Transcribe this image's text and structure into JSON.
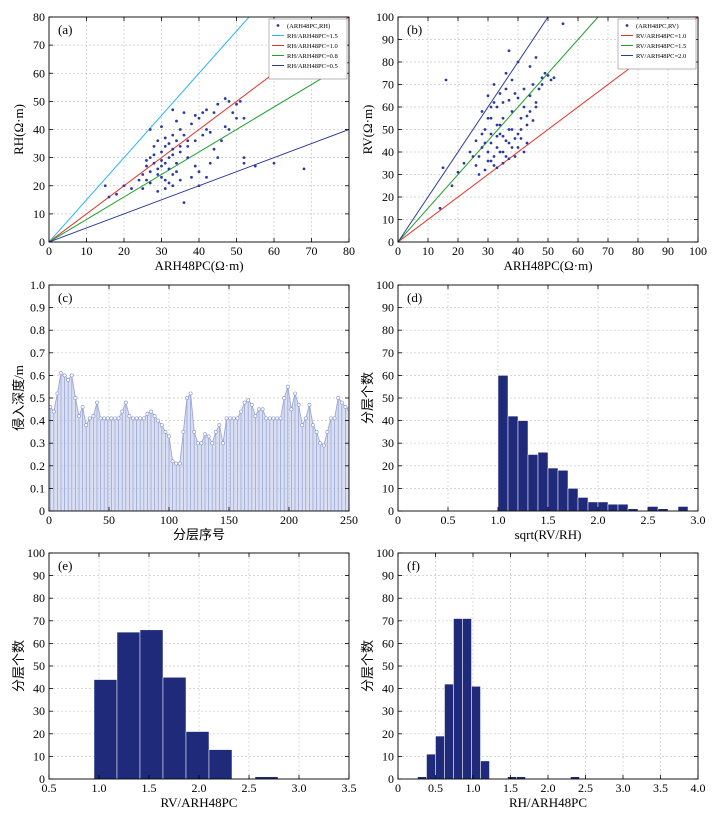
{
  "colors": {
    "point": "#2b3a9e",
    "bar": "#1f2a7a",
    "stem": "#9aa6d6",
    "stem_fill": "#bcc6e8",
    "line_15": "#29b6f6",
    "line_10": "#e8312a",
    "line_08": "#1fa02a",
    "line_05": "#2b3a9e",
    "line_20": "#2b3a9e",
    "grid": "#c8c8c8"
  },
  "chart_data": [
    {
      "id": "a",
      "type": "scatter",
      "panel_label": "(a)",
      "xlabel": "ARH48PC(Ω·m)",
      "ylabel": "RH(Ω·m)",
      "xlim": [
        0,
        80
      ],
      "ylim": [
        0,
        80
      ],
      "xticks": [
        "0",
        "10",
        "20",
        "30",
        "40",
        "50",
        "60",
        "70",
        "80"
      ],
      "yticks": [
        "0",
        "10",
        "20",
        "30",
        "40",
        "50",
        "60",
        "70",
        "80"
      ],
      "grid": true,
      "legend_position": "top-right",
      "legend": [
        "(ARH48PC,RH)",
        "RH/ARH48PC=1.5",
        "RH/ARH48PC=1.0",
        "RH/ARH48PC=0.8",
        "RH/ARH48PC=0.5"
      ],
      "lines": [
        {
          "name": "RH/ARH48PC=1.5",
          "slope": 1.5,
          "color": "line_15"
        },
        {
          "name": "RH/ARH48PC=1.0",
          "slope": 1.0,
          "color": "line_10"
        },
        {
          "name": "RH/ARH48PC=0.8",
          "slope": 0.8,
          "color": "line_08"
        },
        {
          "name": "RH/ARH48PC=0.5",
          "slope": 0.5,
          "color": "line_05"
        }
      ],
      "points": [
        [
          15,
          20
        ],
        [
          16,
          16
        ],
        [
          18,
          17
        ],
        [
          20,
          20
        ],
        [
          22,
          19
        ],
        [
          24,
          22
        ],
        [
          25,
          24
        ],
        [
          26,
          27
        ],
        [
          27,
          40
        ],
        [
          27,
          30
        ],
        [
          28,
          31
        ],
        [
          29,
          24
        ],
        [
          30,
          29
        ],
        [
          30,
          32
        ],
        [
          31,
          34
        ],
        [
          31,
          37
        ],
        [
          32,
          30
        ],
        [
          32,
          35
        ],
        [
          33,
          38
        ],
        [
          33,
          33
        ],
        [
          34,
          36
        ],
        [
          34,
          28
        ],
        [
          35,
          40
        ],
        [
          35,
          32
        ],
        [
          36,
          38
        ],
        [
          37,
          30
        ],
        [
          38,
          42
        ],
        [
          39,
          45
        ],
        [
          40,
          44
        ],
        [
          41,
          46
        ],
        [
          42,
          40
        ],
        [
          43,
          39
        ],
        [
          45,
          49
        ],
        [
          47,
          51
        ],
        [
          48,
          50
        ],
        [
          50,
          49
        ],
        [
          51,
          50
        ],
        [
          52,
          28
        ],
        [
          55,
          27
        ],
        [
          60,
          28
        ],
        [
          68,
          26
        ],
        [
          29,
          18
        ],
        [
          31,
          19
        ],
        [
          33,
          20
        ],
        [
          35,
          22
        ],
        [
          36,
          14
        ],
        [
          38,
          23
        ],
        [
          40,
          25
        ],
        [
          32,
          26
        ],
        [
          34,
          43
        ],
        [
          29,
          36
        ],
        [
          30,
          41
        ],
        [
          28,
          34
        ],
        [
          26,
          22
        ],
        [
          27,
          25
        ],
        [
          31,
          22
        ],
        [
          33,
          24
        ],
        [
          37,
          34
        ],
        [
          39,
          36
        ],
        [
          41,
          38
        ],
        [
          44,
          33
        ],
        [
          46,
          36
        ],
        [
          48,
          40
        ],
        [
          50,
          44
        ],
        [
          52,
          44
        ],
        [
          44,
          46
        ],
        [
          42,
          47
        ],
        [
          36,
          46
        ],
        [
          33,
          47
        ],
        [
          30,
          27
        ],
        [
          28,
          28
        ],
        [
          26,
          29
        ],
        [
          25,
          19
        ],
        [
          27,
          21
        ],
        [
          29,
          26
        ],
        [
          31,
          28
        ],
        [
          33,
          31
        ],
        [
          35,
          34
        ],
        [
          37,
          36
        ],
        [
          39,
          27
        ],
        [
          43,
          28
        ],
        [
          45,
          30
        ],
        [
          47,
          41
        ],
        [
          49,
          46
        ],
        [
          52,
          30
        ],
        [
          40,
          20
        ],
        [
          42,
          23
        ],
        [
          30,
          23
        ],
        [
          32,
          21
        ],
        [
          34,
          25
        ]
      ]
    },
    {
      "id": "b",
      "type": "scatter",
      "panel_label": "(b)",
      "xlabel": "ARH48PC(Ω·m)",
      "ylabel": "RV(Ω·m)",
      "xlim": [
        0,
        100
      ],
      "ylim": [
        0,
        100
      ],
      "xticks": [
        "0",
        "10",
        "20",
        "30",
        "40",
        "50",
        "60",
        "70",
        "80",
        "90",
        "100"
      ],
      "yticks": [
        "0",
        "10",
        "20",
        "30",
        "40",
        "50",
        "60",
        "70",
        "80",
        "90",
        "100"
      ],
      "grid": true,
      "legend_position": "top-right",
      "legend": [
        "(ARH48PC,RV)",
        "RV/ARH48PC=1.0",
        "RV/ARH48PC=1.5",
        "RV/ARH48PC=2.0"
      ],
      "lines": [
        {
          "name": "RV/ARH48PC=1.0",
          "slope": 1.0,
          "color": "line_10"
        },
        {
          "name": "RV/ARH48PC=1.5",
          "slope": 1.5,
          "color": "line_08"
        },
        {
          "name": "RV/ARH48PC=2.0",
          "slope": 2.0,
          "color": "line_20"
        }
      ],
      "points": [
        [
          14,
          15
        ],
        [
          15,
          33
        ],
        [
          16,
          72
        ],
        [
          18,
          25
        ],
        [
          20,
          31
        ],
        [
          22,
          35
        ],
        [
          24,
          40
        ],
        [
          25,
          38
        ],
        [
          26,
          45
        ],
        [
          27,
          30
        ],
        [
          28,
          42
        ],
        [
          28,
          58
        ],
        [
          29,
          50
        ],
        [
          30,
          36
        ],
        [
          30,
          65
        ],
        [
          31,
          44
        ],
        [
          31,
          55
        ],
        [
          32,
          38
        ],
        [
          32,
          70
        ],
        [
          33,
          47
        ],
        [
          33,
          60
        ],
        [
          34,
          40
        ],
        [
          34,
          52
        ],
        [
          35,
          35
        ],
        [
          35,
          62
        ],
        [
          36,
          45
        ],
        [
          36,
          75
        ],
        [
          37,
          50
        ],
        [
          37,
          85
        ],
        [
          38,
          42
        ],
        [
          38,
          58
        ],
        [
          39,
          66
        ],
        [
          40,
          48
        ],
        [
          40,
          80
        ],
        [
          41,
          55
        ],
        [
          42,
          60
        ],
        [
          43,
          52
        ],
        [
          44,
          65
        ],
        [
          45,
          70
        ],
        [
          46,
          62
        ],
        [
          47,
          68
        ],
        [
          48,
          73
        ],
        [
          49,
          75
        ],
        [
          50,
          74
        ],
        [
          51,
          72
        ],
        [
          52,
          73
        ],
        [
          55,
          97
        ],
        [
          29,
          32
        ],
        [
          30,
          40
        ],
        [
          31,
          48
        ],
        [
          32,
          34
        ],
        [
          33,
          42
        ],
        [
          34,
          48
        ],
        [
          35,
          55
        ],
        [
          36,
          38
        ],
        [
          37,
          44
        ],
        [
          38,
          50
        ],
        [
          39,
          38
        ],
        [
          40,
          42
        ],
        [
          41,
          46
        ],
        [
          42,
          40
        ],
        [
          43,
          44
        ],
        [
          44,
          58
        ],
        [
          45,
          54
        ],
        [
          46,
          60
        ],
        [
          28,
          48
        ],
        [
          27,
          38
        ],
        [
          26,
          34
        ],
        [
          30,
          55
        ],
        [
          32,
          62
        ],
        [
          34,
          66
        ],
        [
          36,
          68
        ],
        [
          38,
          72
        ],
        [
          40,
          64
        ],
        [
          42,
          68
        ],
        [
          44,
          78
        ],
        [
          46,
          82
        ],
        [
          48,
          70
        ],
        [
          31,
          36
        ],
        [
          33,
          33
        ],
        [
          35,
          40
        ],
        [
          37,
          37
        ],
        [
          39,
          46
        ],
        [
          41,
          50
        ],
        [
          43,
          56
        ],
        [
          29,
          44
        ],
        [
          31,
          60
        ],
        [
          33,
          52
        ],
        [
          35,
          47
        ],
        [
          37,
          63
        ]
      ]
    },
    {
      "id": "c",
      "type": "line",
      "panel_label": "(c)",
      "style": "stem",
      "xlabel": "分层序号",
      "ylabel": "侵入深度/m",
      "xlim": [
        0,
        250
      ],
      "ylim": [
        0,
        1.0
      ],
      "xticks": [
        "0",
        "50",
        "100",
        "150",
        "200",
        "250"
      ],
      "yticks": [
        "0",
        "0.1",
        "0.2",
        "0.3",
        "0.4",
        "0.5",
        "0.6",
        "0.7",
        "0.8",
        "0.9",
        "1.0"
      ],
      "grid": true,
      "x": [
        1,
        4,
        7,
        10,
        13,
        16,
        19,
        22,
        25,
        28,
        31,
        34,
        37,
        40,
        43,
        46,
        49,
        52,
        55,
        58,
        61,
        64,
        67,
        70,
        73,
        76,
        79,
        82,
        85,
        88,
        91,
        94,
        97,
        100,
        103,
        106,
        109,
        112,
        115,
        118,
        121,
        124,
        127,
        130,
        133,
        136,
        139,
        142,
        145,
        148,
        151,
        154,
        157,
        160,
        163,
        166,
        169,
        172,
        175,
        178,
        181,
        184,
        187,
        190,
        193,
        196,
        199,
        202,
        205,
        208,
        211,
        214,
        217,
        220,
        223,
        226,
        229,
        232,
        235,
        238,
        241,
        244,
        247,
        250
      ],
      "y": [
        0.46,
        0.44,
        0.52,
        0.61,
        0.6,
        0.58,
        0.6,
        0.5,
        0.42,
        0.46,
        0.38,
        0.41,
        0.42,
        0.48,
        0.41,
        0.41,
        0.41,
        0.41,
        0.41,
        0.41,
        0.44,
        0.48,
        0.42,
        0.41,
        0.41,
        0.41,
        0.41,
        0.43,
        0.44,
        0.42,
        0.4,
        0.38,
        0.35,
        0.33,
        0.22,
        0.21,
        0.21,
        0.35,
        0.5,
        0.52,
        0.35,
        0.3,
        0.3,
        0.34,
        0.33,
        0.3,
        0.35,
        0.38,
        0.3,
        0.41,
        0.41,
        0.41,
        0.41,
        0.44,
        0.48,
        0.49,
        0.47,
        0.42,
        0.45,
        0.45,
        0.41,
        0.41,
        0.41,
        0.41,
        0.41,
        0.5,
        0.55,
        0.45,
        0.52,
        0.47,
        0.38,
        0.41,
        0.47,
        0.38,
        0.35,
        0.3,
        0.29,
        0.35,
        0.41,
        0.41,
        0.5,
        0.48,
        0.46,
        0.45
      ]
    },
    {
      "id": "d",
      "type": "bar",
      "panel_label": "(d)",
      "xlabel": "sqrt(RV/RH)",
      "ylabel": "分层个数",
      "xlim": [
        0,
        3.0
      ],
      "ylim": [
        0,
        100
      ],
      "xticks": [
        "0",
        "0.5",
        "1.0",
        "1.5",
        "2.0",
        "2.5",
        "3.0"
      ],
      "yticks": [
        "0",
        "10",
        "20",
        "30",
        "40",
        "50",
        "60",
        "70",
        "80",
        "90",
        "100"
      ],
      "grid": true,
      "bin_width": 0.1,
      "bin_starts": [
        1.0,
        1.1,
        1.2,
        1.3,
        1.4,
        1.5,
        1.6,
        1.7,
        1.8,
        1.9,
        2.0,
        2.1,
        2.2,
        2.3,
        2.4,
        2.5,
        2.6,
        2.7,
        2.8
      ],
      "values": [
        60,
        42,
        40,
        25,
        26,
        19,
        18,
        10,
        6,
        4,
        4,
        3,
        3,
        1,
        0,
        2,
        1,
        0,
        2
      ]
    },
    {
      "id": "e",
      "type": "bar",
      "panel_label": "(e)",
      "xlabel": "RV/ARH48PC",
      "ylabel": "分层个数",
      "xlim": [
        0.5,
        3.5
      ],
      "ylim": [
        0,
        100
      ],
      "xticks": [
        "0.5",
        "1.0",
        "1.5",
        "2.0",
        "2.5",
        "3.0",
        "3.5"
      ],
      "yticks": [
        "0",
        "10",
        "20",
        "30",
        "40",
        "50",
        "60",
        "70",
        "80",
        "90",
        "100"
      ],
      "grid": true,
      "bin_width": 0.23,
      "bin_starts": [
        0.95,
        1.18,
        1.41,
        1.64,
        1.87,
        2.1,
        2.33,
        2.56
      ],
      "values": [
        44,
        65,
        66,
        45,
        21,
        13,
        0,
        1
      ]
    },
    {
      "id": "f",
      "type": "bar",
      "panel_label": "(f)",
      "xlabel": "RH/ARH48PC",
      "ylabel": "分层个数",
      "xlim": [
        0,
        4.0
      ],
      "ylim": [
        0,
        100
      ],
      "xticks": [
        "0",
        "0.5",
        "1.0",
        "1.5",
        "2.0",
        "2.5",
        "3.0",
        "3.5",
        "4.0"
      ],
      "yticks": [
        "0",
        "10",
        "20",
        "30",
        "40",
        "50",
        "60",
        "70",
        "80",
        "90",
        "100"
      ],
      "grid": true,
      "bin_width": 0.12,
      "bin_starts": [
        0.26,
        0.38,
        0.5,
        0.62,
        0.74,
        0.86,
        0.98,
        1.1,
        1.22,
        1.34,
        1.46,
        1.58,
        2.3
      ],
      "values": [
        1,
        11,
        19,
        42,
        71,
        71,
        41,
        8,
        0,
        0,
        1,
        1,
        1
      ]
    }
  ]
}
